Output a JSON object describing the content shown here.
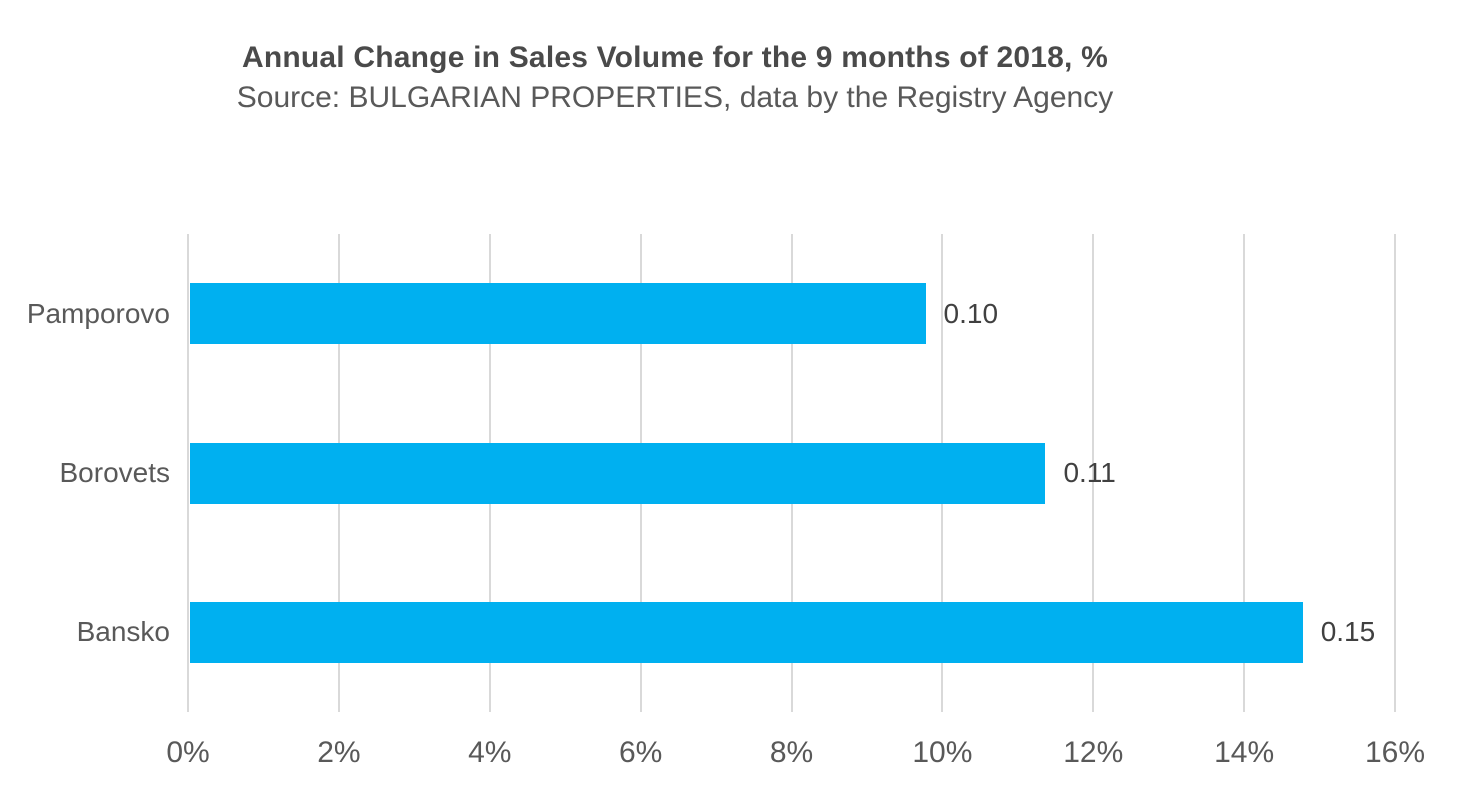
{
  "header": {
    "title": "Annual Change in Sales Volume for the 9 months of 2018, %",
    "subtitle": "Source: BULGARIAN PROPERTIES, data by the Registry Agency"
  },
  "colors": {
    "bar": "#00b0f0",
    "gridline": "#d9d9d9",
    "title_text": "#4a4a4a",
    "axis_text": "#595959",
    "value_text": "#404040"
  },
  "chart_data": {
    "type": "bar",
    "orientation": "horizontal",
    "title": "Annual Change in Sales Volume for the 9 months of 2018, %",
    "subtitle": "Source: BULGARIAN PROPERTIES, data by the Registry Agency",
    "categories": [
      "Pamporovo",
      "Borovets",
      "Bansko"
    ],
    "data_labels": [
      "0.10",
      "0.11",
      "0.15"
    ],
    "values_percent_est": [
      9.75,
      11.34,
      14.75
    ],
    "xlabel": "",
    "ylabel": "",
    "xlim": [
      0,
      16
    ],
    "x_ticks": [
      "0%",
      "2%",
      "4%",
      "6%",
      "8%",
      "10%",
      "12%",
      "14%",
      "16%"
    ],
    "grid": "vertical-only",
    "legend": "none"
  }
}
